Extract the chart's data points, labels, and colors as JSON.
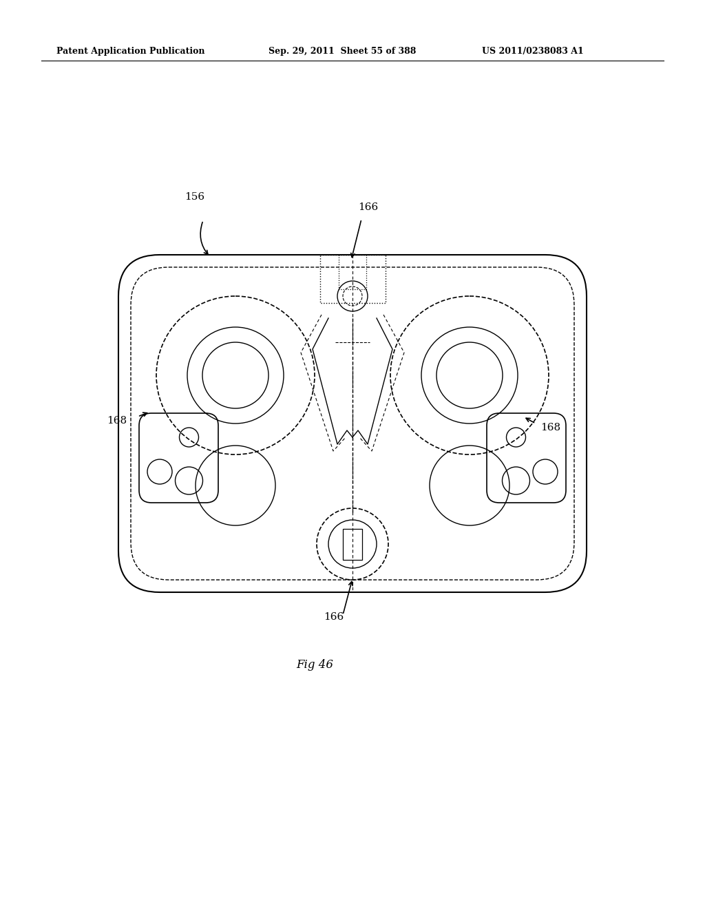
{
  "title_left": "Patent Application Publication",
  "title_mid": "Sep. 29, 2011  Sheet 55 of 388",
  "title_right": "US 2011/0238083 A1",
  "fig_label": "Fig 46",
  "ref_156": "156",
  "ref_166_top": "166",
  "ref_168_left": "168",
  "ref_168_right": "168",
  "ref_166_bottom": "166",
  "bg_color": "#ffffff",
  "line_color": "#000000",
  "dashed_color": "#555555"
}
